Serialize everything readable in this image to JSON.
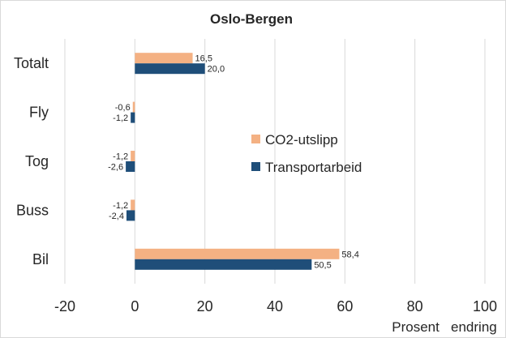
{
  "chart_data": {
    "type": "bar",
    "orientation": "horizontal",
    "title": "Oslo-Bergen",
    "xlabel": "Prosent   endring",
    "ylabel": "",
    "categories": [
      "Totalt",
      "Fly",
      "Tog",
      "Buss",
      "Bil"
    ],
    "series": [
      {
        "name": "CO2-utslipp",
        "color": "#f4b183",
        "values": [
          16.5,
          -0.6,
          -1.2,
          -1.2,
          58.4
        ],
        "labels": [
          "16,5",
          "-0,6",
          "-1,2",
          "-1,2",
          "58,4"
        ]
      },
      {
        "name": "Transportarbeid",
        "color": "#1f4e79",
        "values": [
          20.0,
          -1.2,
          -2.6,
          -2.4,
          50.5
        ],
        "labels": [
          "20,0",
          "-1,2",
          "-2,6",
          "-2,4",
          "50,5"
        ]
      }
    ],
    "xlim": [
      -20,
      100
    ],
    "xticks": [
      "-20",
      "0",
      "20",
      "40",
      "60",
      "80",
      "100"
    ],
    "grid": true,
    "legend_position": "right"
  }
}
